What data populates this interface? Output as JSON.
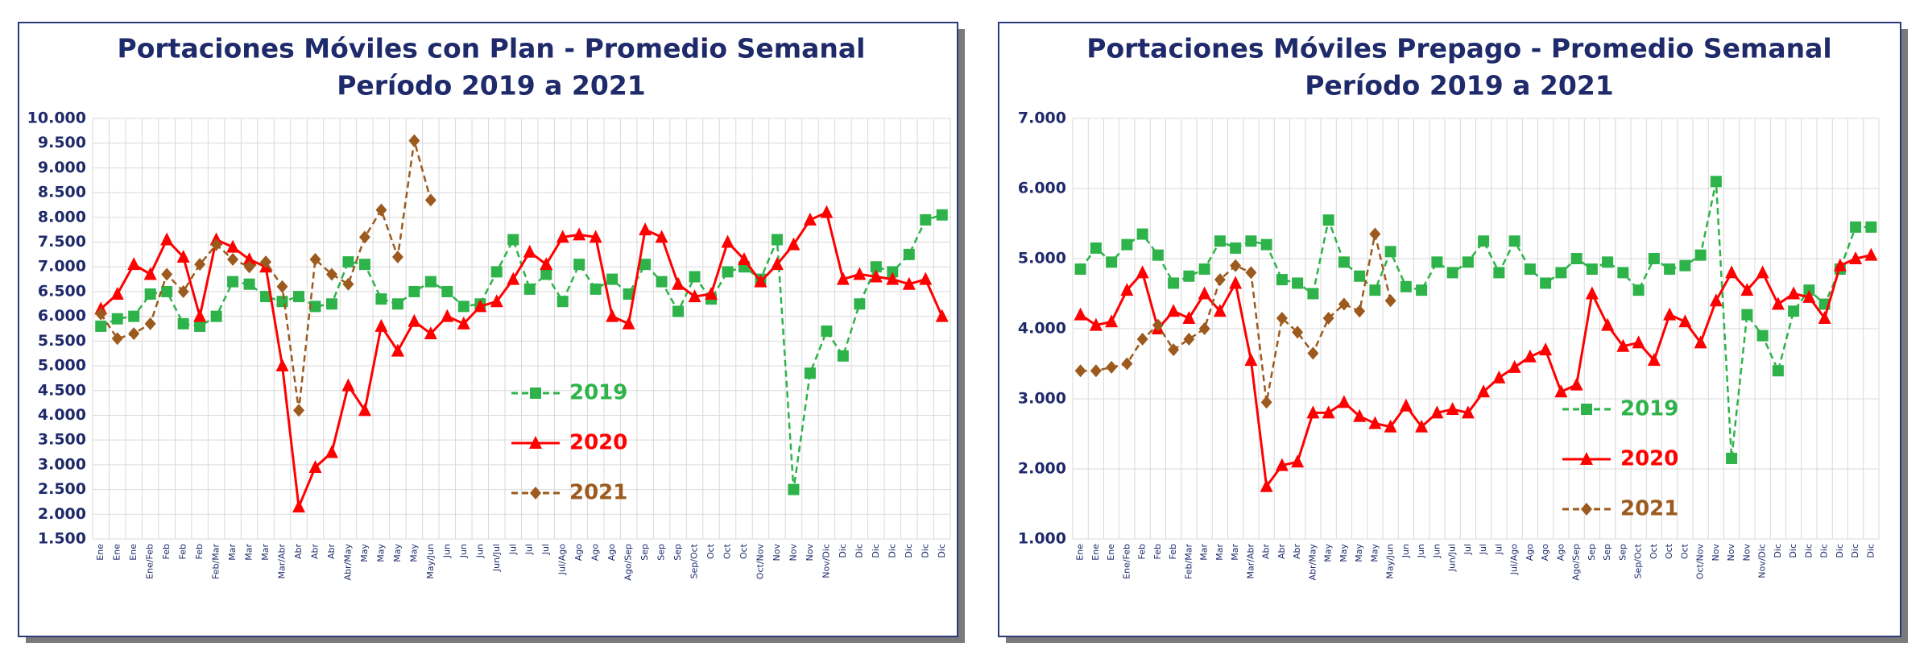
{
  "chart_data": [
    {
      "type": "line",
      "title": "Portaciones Móviles con Plan - Promedio Semanal",
      "subtitle": "Período 2019 a 2021",
      "categories": [
        "Ene",
        "Ene",
        "Ene",
        "Ene/Feb",
        "Feb",
        "Feb",
        "Feb",
        "Feb/Mar",
        "Mar",
        "Mar",
        "Mar",
        "Mar/Abr",
        "Abr",
        "Abr",
        "Abr",
        "Abr/May",
        "May",
        "May",
        "May",
        "May",
        "May/Jun",
        "Jun",
        "Jun",
        "Jun",
        "Jun/Jul",
        "Jul",
        "Jul",
        "Jul",
        "Jul/Ago",
        "Ago",
        "Ago",
        "Ago",
        "Ago/Sep",
        "Sep",
        "Sep",
        "Sep",
        "Sep/Oct",
        "Oct",
        "Oct",
        "Oct",
        "Oct/Nov",
        "Nov",
        "Nov",
        "Nov",
        "Nov/Dic",
        "Dic",
        "Dic",
        "Dic",
        "Dic",
        "Dic",
        "Dic",
        "Dic"
      ],
      "series": [
        {
          "name": "2019",
          "color": "#2db34a",
          "values": [
            5800,
            5950,
            6000,
            6450,
            6500,
            5850,
            5800,
            6000,
            6700,
            6650,
            6400,
            6300,
            6400,
            6200,
            6250,
            7100,
            7050,
            6350,
            6250,
            6500,
            6700,
            6500,
            6200,
            6250,
            6900,
            7550,
            6550,
            6850,
            6300,
            7050,
            6550,
            6750,
            6450,
            7050,
            6700,
            6100,
            6800,
            6350,
            6900,
            7000,
            6750,
            7550,
            2500,
            4850,
            5700,
            5200,
            6250,
            7000,
            6900,
            7250,
            7950,
            8050
          ]
        },
        {
          "name": "2020",
          "color": "#ff0000",
          "values": [
            6150,
            6450,
            7050,
            6850,
            7550,
            7200,
            6000,
            7550,
            7400,
            7150,
            7000,
            5000,
            2150,
            2950,
            3250,
            4600,
            4100,
            5800,
            5300,
            5900,
            5650,
            6000,
            5850,
            6200,
            6300,
            6750,
            7300,
            7050,
            7600,
            7650,
            7600,
            6000,
            5850,
            7750,
            7600,
            6650,
            6400,
            6450,
            7500,
            7150,
            6700,
            7050,
            7450,
            7950,
            8100,
            6750,
            6850,
            6800,
            6750,
            6650,
            6750,
            6000
          ]
        },
        {
          "name": "2021",
          "color": "#9c5a1e",
          "values": [
            6050,
            5550,
            5650,
            5850,
            6850,
            6500,
            7050,
            7450,
            7150,
            7000,
            7100,
            6600,
            4100,
            7150,
            6850,
            6650,
            7600,
            8150,
            7200,
            9550,
            8350,
            null,
            null,
            null,
            null,
            null,
            null,
            null,
            null,
            null,
            null,
            null,
            null,
            null,
            null,
            null,
            null,
            null,
            null,
            null,
            null,
            null,
            null,
            null,
            null,
            null,
            null,
            null,
            null,
            null,
            null,
            null
          ]
        }
      ],
      "ylim": [
        1500,
        10000
      ],
      "yticks": [
        {
          "value": 1500,
          "label": "1.500"
        },
        {
          "value": 2000,
          "label": "2.000"
        },
        {
          "value": 2500,
          "label": "2.500"
        },
        {
          "value": 3000,
          "label": "3.000"
        },
        {
          "value": 3500,
          "label": "3.500"
        },
        {
          "value": 4000,
          "label": "4.000"
        },
        {
          "value": 4500,
          "label": "4.500"
        },
        {
          "value": 5000,
          "label": "5.000"
        },
        {
          "value": 5500,
          "label": "5.500"
        },
        {
          "value": 6000,
          "label": "6.000"
        },
        {
          "value": 6500,
          "label": "6.500"
        },
        {
          "value": 7000,
          "label": "7.000"
        },
        {
          "value": 7500,
          "label": "7.500"
        },
        {
          "value": 8000,
          "label": "8.000"
        },
        {
          "value": 8500,
          "label": "8.500"
        },
        {
          "value": 9000,
          "label": "9.000"
        },
        {
          "value": 9500,
          "label": "9.500"
        },
        {
          "value": 10000,
          "label": "10.000"
        }
      ],
      "grid": true
    },
    {
      "type": "line",
      "title": "Portaciones Móviles Prepago - Promedio Semanal",
      "subtitle": "Período 2019 a 2021",
      "categories": [
        "Ene",
        "Ene",
        "Ene",
        "Ene/Feb",
        "Feb",
        "Feb",
        "Feb",
        "Feb/Mar",
        "Mar",
        "Mar",
        "Mar",
        "Mar/Abr",
        "Abr",
        "Abr",
        "Abr",
        "Abr/May",
        "May",
        "May",
        "May",
        "May",
        "May/Jun",
        "Jun",
        "Jun",
        "Jun",
        "Jun/Jul",
        "Jul",
        "Jul",
        "Jul",
        "Jul/Ago",
        "Ago",
        "Ago",
        "Ago",
        "Ago/Sep",
        "Sep",
        "Sep",
        "Sep",
        "Sep/Oct",
        "Oct",
        "Oct",
        "Oct",
        "Oct/Nov",
        "Nov",
        "Nov",
        "Nov",
        "Nov/Dic",
        "Dic",
        "Dic",
        "Dic",
        "Dic",
        "Dic",
        "Dic",
        "Dic"
      ],
      "series": [
        {
          "name": "2019",
          "color": "#2db34a",
          "values": [
            4850,
            5150,
            4950,
            5200,
            5350,
            5050,
            4650,
            4750,
            4850,
            5250,
            5150,
            5250,
            5200,
            4700,
            4650,
            4500,
            5550,
            4950,
            4750,
            4550,
            5100,
            4600,
            4550,
            4950,
            4800,
            4950,
            5250,
            4800,
            5250,
            4850,
            4650,
            4800,
            5000,
            4850,
            4950,
            4800,
            4550,
            5000,
            4850,
            4900,
            5050,
            6100,
            2150,
            4200,
            3900,
            3400,
            4250,
            4550,
            4350,
            4850,
            5450,
            5450
          ]
        },
        {
          "name": "2020",
          "color": "#ff0000",
          "values": [
            4200,
            4050,
            4100,
            4550,
            4800,
            4000,
            4250,
            4150,
            4500,
            4250,
            4650,
            3550,
            1750,
            2050,
            2100,
            2800,
            2800,
            2950,
            2750,
            2650,
            2600,
            2900,
            2600,
            2800,
            2850,
            2800,
            3100,
            3300,
            3450,
            3600,
            3700,
            3100,
            3200,
            4500,
            4050,
            3750,
            3800,
            3550,
            4200,
            4100,
            3800,
            4400,
            4800,
            4550,
            4800,
            4350,
            4500,
            4450,
            4150,
            4900,
            5000,
            5050
          ]
        },
        {
          "name": "2021",
          "color": "#9c5a1e",
          "values": [
            3400,
            3400,
            3450,
            3500,
            3850,
            4050,
            3700,
            3850,
            4000,
            4700,
            4900,
            4800,
            2950,
            4150,
            3950,
            3650,
            4150,
            4350,
            4250,
            5350,
            4400,
            null,
            null,
            null,
            null,
            null,
            null,
            null,
            null,
            null,
            null,
            null,
            null,
            null,
            null,
            null,
            null,
            null,
            null,
            null,
            null,
            null,
            null,
            null,
            null,
            null,
            null,
            null,
            null,
            null,
            null,
            null
          ]
        }
      ],
      "ylim": [
        1000,
        7000
      ],
      "yticks": [
        {
          "value": 1000,
          "label": "1.000"
        },
        {
          "value": 2000,
          "label": "2.000"
        },
        {
          "value": 3000,
          "label": "3.000"
        },
        {
          "value": 4000,
          "label": "4.000"
        },
        {
          "value": 5000,
          "label": "5.000"
        },
        {
          "value": 6000,
          "label": "6.000"
        },
        {
          "value": 7000,
          "label": "7.000"
        }
      ],
      "grid": true
    }
  ]
}
